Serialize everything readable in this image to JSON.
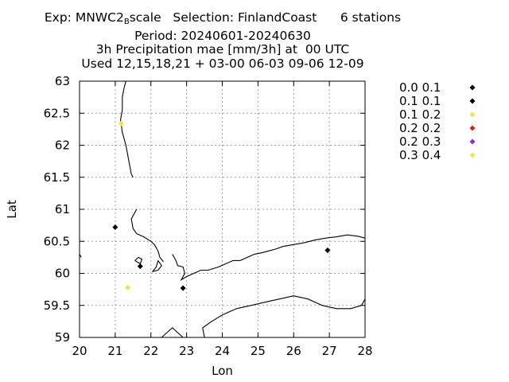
{
  "chart_data": {
    "type": "scatter",
    "title_lines": [
      {
        "pre": "Exp: MNWC2",
        "sub": "B",
        "post": "scale   Selection: FinlandCoast      6 stations"
      },
      {
        "pre": "Period: 20240601-20240630"
      },
      {
        "pre": "3h Precipitation mae [mm/3h] at  00 UTC"
      },
      {
        "pre": "Used 12,15,18,21 + 03-00 06-03 09-06 12-09"
      }
    ],
    "xlabel": "Lon",
    "ylabel": "Lat",
    "xlim": [
      20,
      28
    ],
    "ylim": [
      59,
      63
    ],
    "xticks": [
      20,
      21,
      22,
      23,
      24,
      25,
      26,
      27,
      28
    ],
    "yticks": [
      59,
      59.5,
      60,
      60.5,
      61,
      61.5,
      62,
      62.5,
      63
    ],
    "xtick_labels": [
      "20",
      "21",
      "22",
      "23",
      "24",
      "25",
      "26",
      "27",
      "28"
    ],
    "ytick_labels": [
      "59",
      "59.5",
      "60",
      "60.5",
      "61",
      "61.5",
      "62",
      "62.5",
      "63"
    ],
    "grid": true,
    "legend_position": "right",
    "legend": [
      {
        "label": "0.0 0.1",
        "color": "#000000"
      },
      {
        "label": "0.1 0.1",
        "color": "#000000"
      },
      {
        "label": "0.1 0.2",
        "color": "#f0e442"
      },
      {
        "label": "0.2 0.2",
        "color": "#e41a1c"
      },
      {
        "label": "0.2 0.3",
        "color": "#8a2be2"
      },
      {
        "label": "0.3 0.4",
        "color": "#f0e442"
      }
    ],
    "points": [
      {
        "lon": 21.17,
        "lat": 62.34,
        "class": 2
      },
      {
        "lon": 21.0,
        "lat": 60.72,
        "class": 1
      },
      {
        "lon": 21.7,
        "lat": 60.11,
        "class": 0
      },
      {
        "lon": 21.35,
        "lat": 59.78,
        "class": 5
      },
      {
        "lon": 22.9,
        "lat": 59.77,
        "class": 0
      },
      {
        "lon": 26.95,
        "lat": 60.36,
        "class": 0
      }
    ],
    "coastlines": [
      [
        [
          21.3,
          63.0
        ],
        [
          21.25,
          62.9
        ],
        [
          21.2,
          62.75
        ],
        [
          21.2,
          62.55
        ],
        [
          21.15,
          62.4
        ],
        [
          21.2,
          62.2
        ],
        [
          21.3,
          62.0
        ],
        [
          21.35,
          61.85
        ],
        [
          21.4,
          61.7
        ],
        [
          21.45,
          61.55
        ],
        [
          21.5,
          61.5
        ]
      ],
      [
        [
          21.6,
          61.0
        ],
        [
          21.45,
          60.85
        ],
        [
          21.5,
          60.7
        ],
        [
          21.6,
          60.62
        ],
        [
          21.8,
          60.57
        ],
        [
          22.0,
          60.5
        ],
        [
          22.1,
          60.45
        ],
        [
          22.2,
          60.35
        ],
        [
          22.25,
          60.25
        ],
        [
          22.35,
          60.18
        ]
      ],
      [
        [
          22.6,
          60.3
        ],
        [
          22.7,
          60.2
        ],
        [
          22.75,
          60.12
        ],
        [
          22.9,
          60.1
        ],
        [
          22.95,
          60.0
        ],
        [
          22.85,
          59.9
        ],
        [
          23.0,
          59.95
        ],
        [
          23.2,
          60.0
        ],
        [
          23.4,
          60.05
        ],
        [
          23.6,
          60.05
        ],
        [
          23.9,
          60.1
        ],
        [
          24.1,
          60.15
        ],
        [
          24.3,
          60.2
        ],
        [
          24.5,
          60.2
        ],
        [
          24.7,
          60.25
        ],
        [
          24.9,
          60.3
        ],
        [
          25.1,
          60.32
        ],
        [
          25.3,
          60.35
        ],
        [
          25.5,
          60.38
        ],
        [
          25.7,
          60.42
        ],
        [
          26.0,
          60.45
        ],
        [
          26.3,
          60.48
        ],
        [
          26.6,
          60.52
        ],
        [
          26.9,
          60.55
        ],
        [
          27.2,
          60.57
        ],
        [
          27.5,
          60.6
        ],
        [
          27.8,
          60.58
        ],
        [
          28.0,
          60.55
        ]
      ],
      [
        [
          22.2,
          60.2
        ],
        [
          22.3,
          60.12
        ],
        [
          22.2,
          60.05
        ],
        [
          22.05,
          60.03
        ],
        [
          22.15,
          60.1
        ],
        [
          22.2,
          60.2
        ]
      ],
      [
        [
          21.55,
          60.2
        ],
        [
          21.65,
          60.25
        ],
        [
          21.75,
          60.22
        ],
        [
          21.7,
          60.15
        ],
        [
          21.55,
          60.2
        ]
      ],
      [
        [
          20.0,
          60.3
        ],
        [
          20.05,
          60.25
        ]
      ],
      [
        [
          23.5,
          59.0
        ],
        [
          23.45,
          59.15
        ],
        [
          23.7,
          59.25
        ],
        [
          24.0,
          59.35
        ],
        [
          24.4,
          59.45
        ],
        [
          24.8,
          59.5
        ],
        [
          25.2,
          59.55
        ],
        [
          25.6,
          59.6
        ],
        [
          26.0,
          59.65
        ],
        [
          26.4,
          59.6
        ],
        [
          26.8,
          59.5
        ],
        [
          27.2,
          59.45
        ],
        [
          27.6,
          59.45
        ],
        [
          27.9,
          59.5
        ],
        [
          28.0,
          59.6
        ]
      ],
      [
        [
          22.3,
          59.0
        ],
        [
          22.6,
          59.15
        ],
        [
          22.8,
          59.05
        ],
        [
          22.9,
          59.0
        ]
      ]
    ]
  }
}
